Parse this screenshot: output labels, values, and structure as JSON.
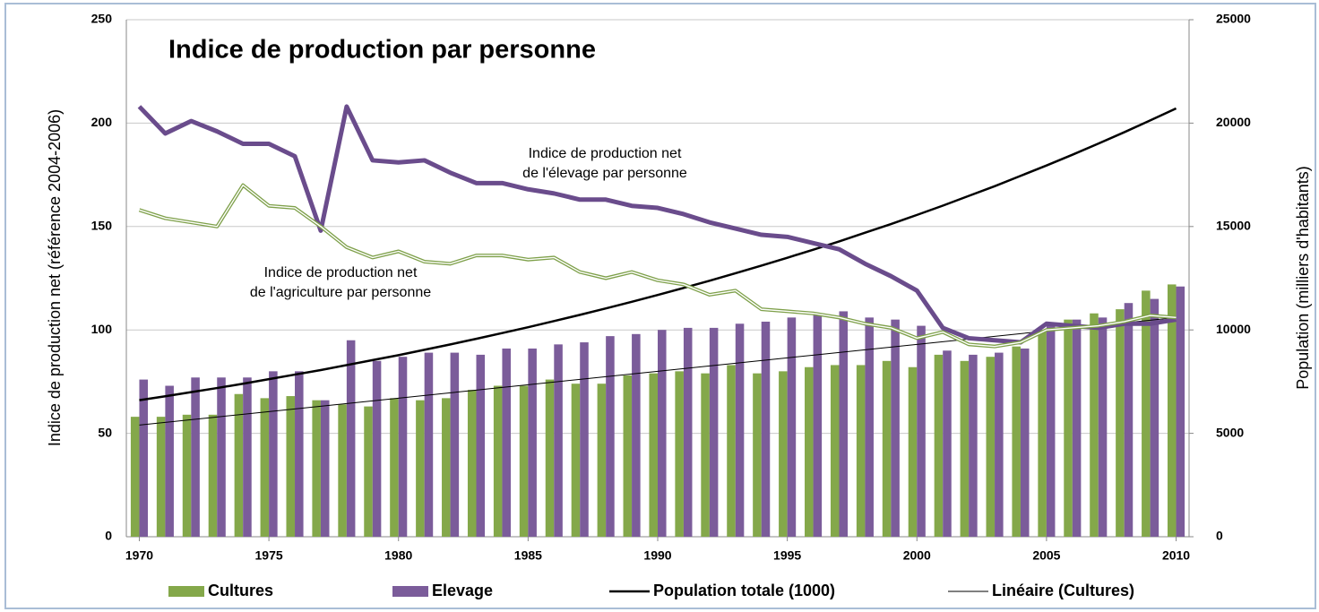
{
  "chart_data": {
    "type": "combo",
    "title": "Indice de production par personne",
    "ylabel": "Indice de production net (référence 2004-2006)",
    "y2label": "Population (milliers d'habitants)",
    "x": [
      1970,
      1971,
      1972,
      1973,
      1974,
      1975,
      1976,
      1977,
      1978,
      1979,
      1980,
      1981,
      1982,
      1983,
      1984,
      1985,
      1986,
      1987,
      1988,
      1989,
      1990,
      1991,
      1992,
      1993,
      1994,
      1995,
      1996,
      1997,
      1998,
      1999,
      2000,
      2001,
      2002,
      2003,
      2004,
      2005,
      2006,
      2007,
      2008,
      2009,
      2010
    ],
    "xlim": [
      1969.5,
      2010.5
    ],
    "xticks": [
      1970,
      1975,
      1980,
      1985,
      1990,
      1995,
      2000,
      2005,
      2010
    ],
    "ylim": [
      0,
      250
    ],
    "yticks": [
      0,
      50,
      100,
      150,
      200,
      250
    ],
    "y2lim": [
      0,
      25000
    ],
    "y2ticks": [
      0,
      5000,
      10000,
      15000,
      20000,
      25000
    ],
    "grid": true,
    "legend": "bottom",
    "series": [
      {
        "name": "Cultures",
        "type": "bar",
        "color": "#84a84a",
        "values": [
          58,
          58,
          59,
          59,
          69,
          67,
          68,
          66,
          64,
          63,
          67,
          66,
          67,
          71,
          73,
          73,
          76,
          74,
          74,
          78,
          79,
          80,
          79,
          83,
          79,
          80,
          82,
          83,
          83,
          85,
          82,
          88,
          85,
          87,
          92,
          100,
          105,
          108,
          110,
          119,
          122
        ]
      },
      {
        "name": "Elevage",
        "type": "bar",
        "color": "#7b5c9a",
        "values": [
          76,
          73,
          77,
          77,
          77,
          80,
          80,
          66,
          95,
          85,
          87,
          89,
          89,
          88,
          91,
          91,
          93,
          94,
          97,
          98,
          100,
          101,
          101,
          103,
          104,
          106,
          108,
          109,
          106,
          105,
          102,
          90,
          88,
          89,
          91,
          103,
          105,
          106,
          113,
          115,
          121
        ]
      },
      {
        "name": "Population totale (1000)",
        "type": "line",
        "axis": "y2",
        "color": "#000000",
        "width": 2.5,
        "values": [
          6600,
          6790,
          6990,
          7190,
          7400,
          7620,
          7840,
          8060,
          8300,
          8540,
          8780,
          9040,
          9300,
          9570,
          9850,
          10130,
          10430,
          10730,
          11040,
          11360,
          11690,
          12030,
          12380,
          12740,
          13110,
          13490,
          13880,
          14280,
          14700,
          15120,
          15560,
          16010,
          16480,
          16950,
          17450,
          17950,
          18470,
          19010,
          19560,
          20130,
          20710
        ]
      },
      {
        "name": "Linéaire (Cultures)",
        "type": "line",
        "color": "#000000",
        "width": 1,
        "values": [
          54,
          55.3,
          56.6,
          57.9,
          59.2,
          60.5,
          61.8,
          63.1,
          64.4,
          65.7,
          67,
          68.3,
          69.6,
          70.9,
          72.2,
          73.5,
          74.8,
          76.1,
          77.4,
          78.7,
          80,
          81.3,
          82.6,
          83.9,
          85.2,
          86.5,
          87.8,
          89.1,
          90.4,
          91.7,
          93,
          94.3,
          95.6,
          96.9,
          98.2,
          99.5,
          100.8,
          102.1,
          103.4,
          104.7,
          106
        ]
      },
      {
        "label_lines": [
          "Indice de production net",
          "de l'élevage par personne"
        ],
        "type": "line",
        "color": "#6a4c8c",
        "width": 5,
        "values": [
          208,
          195,
          201,
          196,
          190,
          190,
          184,
          148,
          208,
          182,
          181,
          182,
          176,
          171,
          171,
          168,
          166,
          163,
          163,
          160,
          159,
          156,
          152,
          149,
          146,
          145,
          142,
          139,
          132,
          126,
          119,
          101,
          96,
          95,
          94,
          103,
          102,
          101,
          103,
          103,
          105
        ]
      },
      {
        "label_lines": [
          "Indice de production net",
          "de l'agriculture par personne"
        ],
        "type": "double-line",
        "color": "#7ea04a",
        "width": 4,
        "values": [
          158,
          154,
          152,
          150,
          170,
          160,
          159,
          150,
          140,
          135,
          138,
          133,
          132,
          136,
          136,
          134,
          135,
          128,
          125,
          128,
          124,
          122,
          117,
          119,
          110,
          109,
          108,
          106,
          103,
          101,
          96,
          99,
          93,
          92,
          94,
          100,
          101,
          102,
          104,
          107,
          106
        ]
      }
    ]
  }
}
